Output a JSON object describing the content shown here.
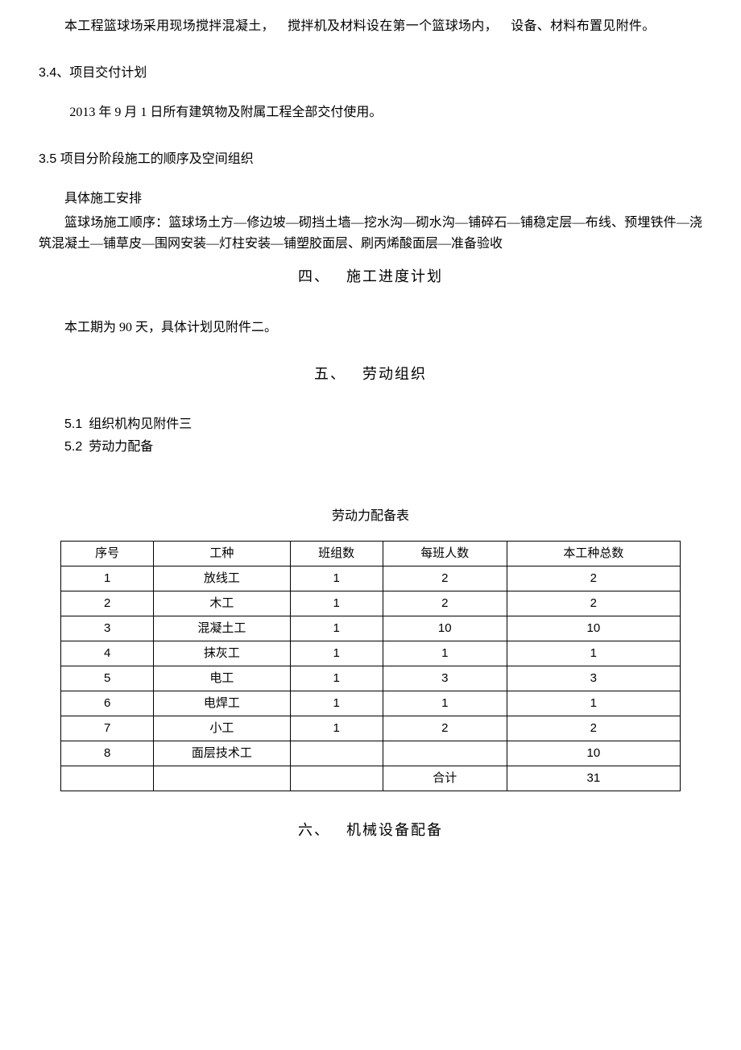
{
  "p_intro": "本工程篮球场采用现场搅拌混凝土， 搅拌机及材料设在第一个篮球场内， 设备、材料布置见附件。",
  "s34_title": "3.4、项目交付计划",
  "s34_body": "2013 年 9 月 1 日所有建筑物及附属工程全部交付使用。",
  "s35_title": "3.5 项目分阶段施工的顺序及空间组织",
  "s35_b1": "具体施工安排",
  "s35_b2": "篮球场施工顺序：篮球场土方—修边坡—砌挡土墙—挖水沟—砌水沟—铺碎石—铺稳定层—布线、预埋铁件—浇筑混凝土—铺草皮—围网安装—灯柱安装—铺塑胶面层、刷丙烯酸面层—准备验收",
  "h4": "四、 施工进度计划",
  "h4_body": "本工期为 90 天，具体计划见附件二。",
  "h5": "五、 劳动组织",
  "h5_1": "5.1 组织机构见附件三",
  "h5_2": "5.2 劳动力配备",
  "table_title": "劳动力配备表",
  "table": {
    "col_widths": [
      "15%",
      "22%",
      "15%",
      "20%",
      "28%"
    ],
    "headers": [
      "序号",
      "工种",
      "班组数",
      "每班人数",
      "本工种总数"
    ],
    "rows": [
      [
        "1",
        "放线工",
        "1",
        "2",
        "2"
      ],
      [
        "2",
        "木工",
        "1",
        "2",
        "2"
      ],
      [
        "3",
        "混凝土工",
        "1",
        "10",
        "10"
      ],
      [
        "4",
        "抹灰工",
        "1",
        "1",
        "1"
      ],
      [
        "5",
        "电工",
        "1",
        "3",
        "3"
      ],
      [
        "6",
        "电焊工",
        "1",
        "1",
        "1"
      ],
      [
        "7",
        "小工",
        "1",
        "2",
        "2"
      ],
      [
        "8",
        "面层技术工",
        "",
        "",
        "10"
      ],
      [
        "",
        "",
        "",
        "合计",
        "31"
      ]
    ]
  },
  "h6": "六、 机械设备配备"
}
